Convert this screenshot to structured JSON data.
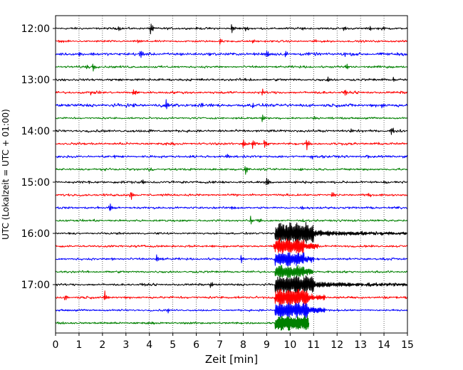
{
  "chart_data": {
    "type": "line",
    "title": "",
    "xlabel": "Zeit  [min]",
    "ylabel": "UTC (Lokalzeit = UTC + 01:00)",
    "xlim": [
      0,
      15
    ],
    "x_ticks": [
      "0",
      "1",
      "2",
      "3",
      "4",
      "5",
      "6",
      "7",
      "8",
      "9",
      "10",
      "11",
      "12",
      "13",
      "14",
      "15"
    ],
    "y_ticks": [
      {
        "label": "12:00",
        "trace": 0
      },
      {
        "label": "13:00",
        "trace": 4
      },
      {
        "label": "14:00",
        "trace": 8
      },
      {
        "label": "15:00",
        "trace": 12
      },
      {
        "label": "16:00",
        "trace": 16
      },
      {
        "label": "17:00",
        "trace": 20
      }
    ],
    "grid": "vertical dotted",
    "trace_colors": [
      "#000000",
      "#ff0000",
      "#0000ff",
      "#008000"
    ],
    "trace_count": 24,
    "trace_interval_min": 15,
    "traces": [
      {
        "start": "12:00",
        "noise": 0.9,
        "events": [
          [
            2.7,
            4
          ],
          [
            4.05,
            9
          ],
          [
            7.5,
            7
          ],
          [
            8.1,
            3
          ],
          [
            10.5,
            3
          ],
          [
            12.3,
            3
          ],
          [
            13.4,
            4
          ],
          [
            13.9,
            3
          ]
        ]
      },
      {
        "start": "12:15",
        "noise": 0.8,
        "events": [
          [
            2.0,
            2
          ],
          [
            3.5,
            3
          ],
          [
            7.0,
            5
          ],
          [
            8.4,
            3
          ],
          [
            11.0,
            3
          ]
        ]
      },
      {
        "start": "12:30",
        "noise": 1.2,
        "events": [
          [
            1.0,
            4
          ],
          [
            3.6,
            8
          ],
          [
            9.0,
            7
          ],
          [
            9.8,
            5
          ],
          [
            12.3,
            4
          ]
        ]
      },
      {
        "start": "12:45",
        "noise": 0.9,
        "events": [
          [
            1.3,
            4
          ],
          [
            1.6,
            6
          ],
          [
            12.4,
            5
          ]
        ]
      },
      {
        "start": "13:00",
        "noise": 1.0,
        "events": [
          [
            8.3,
            3
          ],
          [
            11.6,
            3
          ],
          [
            14.4,
            4
          ]
        ]
      },
      {
        "start": "13:15",
        "noise": 1.0,
        "events": [
          [
            1.5,
            3
          ],
          [
            3.3,
            5
          ],
          [
            8.8,
            5
          ],
          [
            12.3,
            6
          ]
        ]
      },
      {
        "start": "13:30",
        "noise": 1.3,
        "events": [
          [
            3.3,
            3
          ],
          [
            4.7,
            9
          ],
          [
            6.2,
            5
          ],
          [
            8.4,
            4
          ],
          [
            13.9,
            4
          ]
        ]
      },
      {
        "start": "13:45",
        "noise": 0.8,
        "events": [
          [
            8.8,
            7
          ],
          [
            11.0,
            3
          ]
        ]
      },
      {
        "start": "14:00",
        "noise": 1.0,
        "events": [
          [
            4.0,
            2
          ],
          [
            12.6,
            3
          ],
          [
            14.3,
            6
          ]
        ]
      },
      {
        "start": "14:15",
        "noise": 1.0,
        "events": [
          [
            8.0,
            7
          ],
          [
            8.4,
            6
          ],
          [
            8.9,
            7
          ],
          [
            10.7,
            9
          ]
        ]
      },
      {
        "start": "14:30",
        "noise": 1.0,
        "events": [
          [
            2.5,
            2
          ],
          [
            7.3,
            4
          ],
          [
            10.9,
            4
          ],
          [
            13.3,
            3
          ]
        ]
      },
      {
        "start": "14:45",
        "noise": 0.9,
        "events": [
          [
            4.0,
            3
          ],
          [
            8.1,
            8
          ],
          [
            10.5,
            2
          ]
        ]
      },
      {
        "start": "15:00",
        "noise": 1.0,
        "events": [
          [
            1.4,
            3
          ],
          [
            3.7,
            5
          ],
          [
            9.0,
            6
          ],
          [
            14.0,
            3
          ]
        ]
      },
      {
        "start": "15:15",
        "noise": 0.9,
        "events": [
          [
            3.2,
            8
          ],
          [
            11.8,
            4
          ],
          [
            13.3,
            4
          ]
        ]
      },
      {
        "start": "15:30",
        "noise": 0.9,
        "events": [
          [
            2.3,
            9
          ],
          [
            7.5,
            3
          ],
          [
            10.5,
            3
          ]
        ]
      },
      {
        "start": "15:45",
        "noise": 0.9,
        "events": [
          [
            8.3,
            7
          ],
          [
            8.7,
            3
          ]
        ]
      },
      {
        "start": "16:00",
        "noise": 0.8,
        "events": [
          [
            12.0,
            2
          ]
        ],
        "quake": {
          "start": 9.35,
          "peak": 16,
          "ring": 11.0,
          "tail_end": 15
        }
      },
      {
        "start": "16:15",
        "noise": 0.9,
        "events": [
          [
            6.7,
            3
          ],
          [
            9.3,
            4
          ]
        ],
        "quake": {
          "start": 9.35,
          "peak": 11,
          "ring": 10.6,
          "tail_end": 11.2
        }
      },
      {
        "start": "16:30",
        "noise": 0.9,
        "events": [
          [
            2.4,
            3
          ],
          [
            4.3,
            6
          ],
          [
            7.9,
            7
          ]
        ],
        "quake": {
          "start": 9.35,
          "peak": 10,
          "ring": 10.6,
          "tail_end": 11.0
        }
      },
      {
        "start": "16:45",
        "noise": 0.9,
        "events": [],
        "quake": {
          "start": 9.35,
          "peak": 9,
          "ring": 10.6,
          "tail_end": 11.0
        }
      },
      {
        "start": "17:00",
        "noise": 0.9,
        "events": [
          [
            6.6,
            5
          ]
        ],
        "quake": {
          "start": 9.35,
          "peak": 13,
          "ring": 11.0,
          "tail_end": 15
        }
      },
      {
        "start": "17:15",
        "noise": 1.0,
        "events": [
          [
            0.4,
            5
          ],
          [
            2.1,
            8
          ]
        ],
        "quake": {
          "start": 9.35,
          "peak": 12,
          "ring": 10.8,
          "tail_end": 11.5
        }
      },
      {
        "start": "17:30",
        "noise": 0.8,
        "events": [
          [
            4.8,
            3
          ]
        ],
        "quake": {
          "start": 9.35,
          "peak": 11,
          "ring": 10.8,
          "tail_end": 11.5
        }
      },
      {
        "start": "17:45",
        "noise": 0.8,
        "events": [],
        "quake": {
          "start": 9.35,
          "peak": 10,
          "ring": 10.8,
          "tail_end": 10.8
        },
        "end": 10.8
      }
    ]
  }
}
